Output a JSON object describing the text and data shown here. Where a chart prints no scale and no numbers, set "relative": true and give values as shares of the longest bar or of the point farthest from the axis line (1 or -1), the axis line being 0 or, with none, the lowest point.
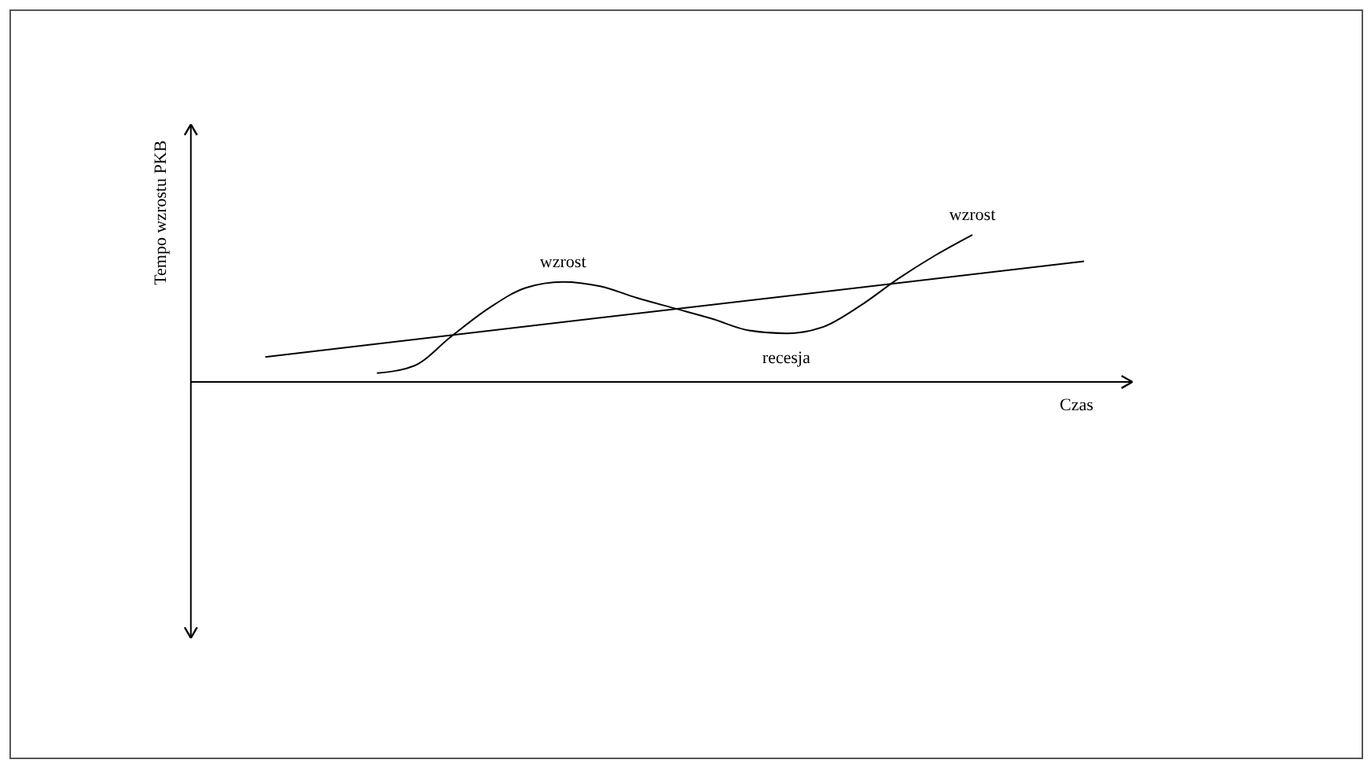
{
  "chart_data": {
    "type": "line",
    "relative": true,
    "xlabel": "Czas",
    "ylabel": "Tempo wzrostu PKB",
    "categories": [
      null,
      null,
      null,
      null,
      null,
      null,
      null,
      null,
      null,
      null,
      null,
      null,
      null,
      null,
      null,
      null,
      null,
      null,
      null,
      null,
      null,
      null,
      null,
      null,
      null
    ],
    "series": [
      {
        "color": "#000000",
        "values": [
          null,
          null,
          null,
          null,
          null,
          0.06,
          0.11,
          0.31,
          0.5,
          0.64,
          0.68,
          0.65,
          0.57,
          0.5,
          0.43,
          0.35,
          0.33,
          0.375,
          0.52,
          0.7,
          0.86,
          1.0,
          null,
          null,
          null
        ]
      },
      {
        "color": "#000000",
        "values": [
          null,
          null,
          0.17,
          null,
          null,
          null,
          null,
          null,
          null,
          null,
          null,
          null,
          null,
          null,
          null,
          null,
          null,
          null,
          null,
          null,
          null,
          null,
          null,
          null,
          0.82
        ]
      }
    ],
    "annotations": [
      {
        "text": "wzrost",
        "y": 0.68
      },
      {
        "text": "recesja",
        "y": 0.33
      },
      {
        "text": "wzrost",
        "y": 1.0
      }
    ],
    "marker": "none"
  }
}
